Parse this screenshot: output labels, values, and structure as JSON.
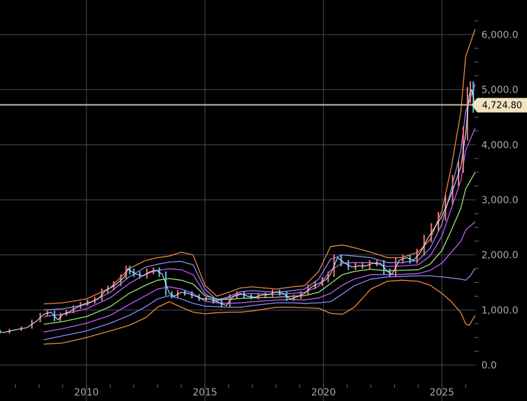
{
  "chart_data": {
    "type": "line",
    "title": "",
    "xlabel": "",
    "ylabel": "",
    "x_ticks": [
      "2010",
      "2015",
      "2020",
      "2025"
    ],
    "y_ticks": [
      "0.0",
      "1,000.0",
      "2,000.0",
      "3,000.0",
      "4,000.0",
      "5,000.0",
      "6,000.0"
    ],
    "x_range": [
      2006.2,
      2026.6
    ],
    "y_range": [
      -200,
      6400
    ],
    "grid": true,
    "current_price": 4724.8,
    "current_price_label": "4,724.80",
    "colors": {
      "price_line": "#c8c0a6",
      "price_label_bg": "#f0e4c0",
      "candle_up": "#f07878",
      "candle_down": "#60c8f0",
      "bands": [
        "#f08a3c",
        "#8a8cff",
        "#c060ff",
        "#9ce87a",
        "#c060ff",
        "#8a8cff",
        "#f08a3c"
      ]
    },
    "price": {
      "x": [
        2006.2,
        2006.5,
        2007.0,
        2007.5,
        2007.9,
        2008.2,
        2008.5,
        2008.8,
        2009.0,
        2009.3,
        2009.6,
        2009.9,
        2010.2,
        2010.5,
        2010.8,
        2011.0,
        2011.3,
        2011.6,
        2011.75,
        2011.9,
        2012.1,
        2012.4,
        2012.7,
        2012.95,
        2013.2,
        2013.5,
        2013.7,
        2014.0,
        2014.3,
        2014.6,
        2014.9,
        2015.2,
        2015.5,
        2015.9,
        2016.2,
        2016.5,
        2016.8,
        2017.1,
        2017.4,
        2017.7,
        2018.0,
        2018.3,
        2018.6,
        2018.9,
        2019.2,
        2019.5,
        2019.8,
        2020.1,
        2020.3,
        2020.6,
        2020.9,
        2021.2,
        2021.5,
        2021.8,
        2022.1,
        2022.4,
        2022.7,
        2022.9,
        2023.2,
        2023.5,
        2023.8,
        2024.1,
        2024.4,
        2024.7,
        2025.0,
        2025.3,
        2025.6,
        2025.8,
        2026.0,
        2026.15,
        2026.25,
        2026.4
      ],
      "y": [
        620,
        590,
        640,
        680,
        800,
        920,
        960,
        820,
        920,
        970,
        1050,
        1110,
        1150,
        1200,
        1350,
        1400,
        1480,
        1600,
        1750,
        1700,
        1650,
        1620,
        1700,
        1720,
        1650,
        1300,
        1250,
        1320,
        1300,
        1250,
        1200,
        1200,
        1150,
        1080,
        1250,
        1300,
        1250,
        1230,
        1270,
        1280,
        1330,
        1300,
        1200,
        1240,
        1300,
        1420,
        1480,
        1550,
        1650,
        1950,
        1850,
        1780,
        1800,
        1800,
        1850,
        1850,
        1700,
        1650,
        1900,
        1950,
        1900,
        2050,
        2300,
        2500,
        2700,
        3000,
        3350,
        3600,
        4200,
        4900,
        5000,
        4724.8
      ]
    },
    "bands": [
      {
        "x": [
          2008.2,
          2009.0,
          2010.0,
          2011.0,
          2011.8,
          2012.5,
          2013.0,
          2013.5,
          2014.0,
          2014.5,
          2015.0,
          2015.5,
          2016.0,
          2016.5,
          2017.0,
          2018.0,
          2018.7,
          2019.2,
          2019.8,
          2020.3,
          2020.8,
          2021.3,
          2022.0,
          2022.7,
          2023.3,
          2024.0,
          2024.5,
          2025.0,
          2025.4,
          2025.8,
          2026.0,
          2026.4
        ],
        "y": [
          1110,
          1130,
          1200,
          1400,
          1750,
          1900,
          1950,
          1980,
          2050,
          2000,
          1450,
          1250,
          1320,
          1400,
          1420,
          1380,
          1420,
          1440,
          1700,
          2150,
          2180,
          2130,
          2050,
          1950,
          1950,
          2050,
          2280,
          2800,
          3600,
          4600,
          5600,
          6100
        ]
      },
      {
        "x": [
          2008.2,
          2009.0,
          2010.0,
          2011.0,
          2011.8,
          2012.5,
          2013.0,
          2013.5,
          2014.0,
          2014.5,
          2015.0,
          2015.5,
          2016.0,
          2016.5,
          2017.0,
          2018.0,
          2018.7,
          2019.2,
          2019.8,
          2020.3,
          2020.8,
          2021.3,
          2022.0,
          2022.7,
          2023.3,
          2024.0,
          2024.5,
          2025.0,
          2025.4,
          2025.8,
          2026.0,
          2026.4
        ],
        "y": [
          1000,
          1020,
          1100,
          1320,
          1600,
          1780,
          1830,
          1870,
          1880,
          1820,
          1380,
          1180,
          1240,
          1330,
          1350,
          1320,
          1350,
          1380,
          1560,
          1920,
          2000,
          1980,
          1950,
          1860,
          1860,
          1900,
          2120,
          2560,
          3200,
          3900,
          4600,
          5100
        ]
      },
      {
        "x": [
          2008.2,
          2009.0,
          2010.0,
          2011.0,
          2011.8,
          2012.5,
          2013.0,
          2013.5,
          2014.0,
          2014.5,
          2015.0,
          2015.5,
          2016.0,
          2016.5,
          2017.0,
          2018.0,
          2018.7,
          2019.2,
          2019.8,
          2020.3,
          2020.8,
          2021.3,
          2022.0,
          2022.7,
          2023.3,
          2024.0,
          2024.5,
          2025.0,
          2025.4,
          2025.8,
          2026.0,
          2026.4
        ],
        "y": [
          880,
          920,
          1020,
          1220,
          1480,
          1650,
          1720,
          1750,
          1730,
          1640,
          1300,
          1160,
          1220,
          1280,
          1300,
          1280,
          1300,
          1320,
          1430,
          1720,
          1850,
          1860,
          1860,
          1790,
          1800,
          1820,
          1980,
          2340,
          2850,
          3350,
          3900,
          4300
        ]
      },
      {
        "x": [
          2008.2,
          2009.0,
          2010.0,
          2011.0,
          2011.8,
          2012.5,
          2013.0,
          2013.5,
          2014.0,
          2014.5,
          2015.0,
          2015.5,
          2016.0,
          2016.5,
          2017.0,
          2018.0,
          2018.7,
          2019.2,
          2019.8,
          2020.3,
          2020.8,
          2021.3,
          2022.0,
          2022.7,
          2023.3,
          2024.0,
          2024.5,
          2025.0,
          2025.4,
          2025.8,
          2026.0,
          2026.4
        ],
        "y": [
          740,
          790,
          880,
          1060,
          1300,
          1450,
          1540,
          1570,
          1540,
          1470,
          1260,
          1200,
          1190,
          1210,
          1220,
          1230,
          1250,
          1260,
          1320,
          1480,
          1640,
          1700,
          1740,
          1710,
          1720,
          1730,
          1830,
          2080,
          2450,
          2850,
          3200,
          3500
        ]
      },
      {
        "x": [
          2008.2,
          2009.0,
          2010.0,
          2011.0,
          2011.8,
          2012.5,
          2013.0,
          2013.5,
          2014.0,
          2014.5,
          2015.0,
          2015.5,
          2016.0,
          2016.5,
          2017.0,
          2018.0,
          2018.7,
          2019.2,
          2019.8,
          2020.3,
          2020.8,
          2021.3,
          2022.0,
          2022.7,
          2023.3,
          2024.0,
          2024.5,
          2025.0,
          2025.4,
          2025.8,
          2026.0,
          2026.4
        ],
        "y": [
          600,
          660,
          760,
          900,
          1100,
          1260,
          1380,
          1420,
          1380,
          1300,
          1160,
          1130,
          1120,
          1130,
          1150,
          1180,
          1190,
          1180,
          1220,
          1300,
          1450,
          1560,
          1640,
          1640,
          1650,
          1660,
          1720,
          1850,
          2050,
          2250,
          2450,
          2600
        ]
      },
      {
        "x": [
          2008.2,
          2009.0,
          2010.0,
          2011.0,
          2011.8,
          2012.5,
          2013.0,
          2013.5,
          2014.0,
          2014.5,
          2015.0,
          2015.5,
          2016.0,
          2016.5,
          2017.0,
          2018.0,
          2018.7,
          2019.2,
          2019.8,
          2020.3,
          2020.8,
          2021.3,
          2022.0,
          2022.7,
          2023.3,
          2024.0,
          2024.5,
          2025.0,
          2025.4,
          2025.8,
          2026.0,
          2026.2,
          2026.4
        ],
        "y": [
          460,
          530,
          620,
          760,
          900,
          1060,
          1200,
          1260,
          1200,
          1120,
          1070,
          1060,
          1050,
          1050,
          1080,
          1130,
          1130,
          1120,
          1130,
          1150,
          1290,
          1440,
          1560,
          1600,
          1610,
          1620,
          1620,
          1600,
          1580,
          1560,
          1540,
          1620,
          1760
        ]
      },
      {
        "x": [
          2008.2,
          2009.0,
          2010.0,
          2011.0,
          2011.8,
          2012.5,
          2013.0,
          2013.5,
          2014.0,
          2014.5,
          2015.0,
          2015.5,
          2016.0,
          2016.5,
          2017.0,
          2018.0,
          2018.7,
          2019.2,
          2019.8,
          2020.3,
          2020.8,
          2021.3,
          2022.0,
          2022.7,
          2023.3,
          2024.0,
          2024.5,
          2025.0,
          2025.4,
          2025.8,
          2026.0,
          2026.15,
          2026.4
        ],
        "y": [
          380,
          400,
          500,
          620,
          720,
          860,
          1050,
          1150,
          1050,
          960,
          930,
          950,
          960,
          960,
          980,
          1050,
          1050,
          1040,
          1030,
          940,
          920,
          1050,
          1380,
          1520,
          1540,
          1520,
          1450,
          1300,
          1150,
          950,
          750,
          720,
          900
        ]
      }
    ]
  }
}
